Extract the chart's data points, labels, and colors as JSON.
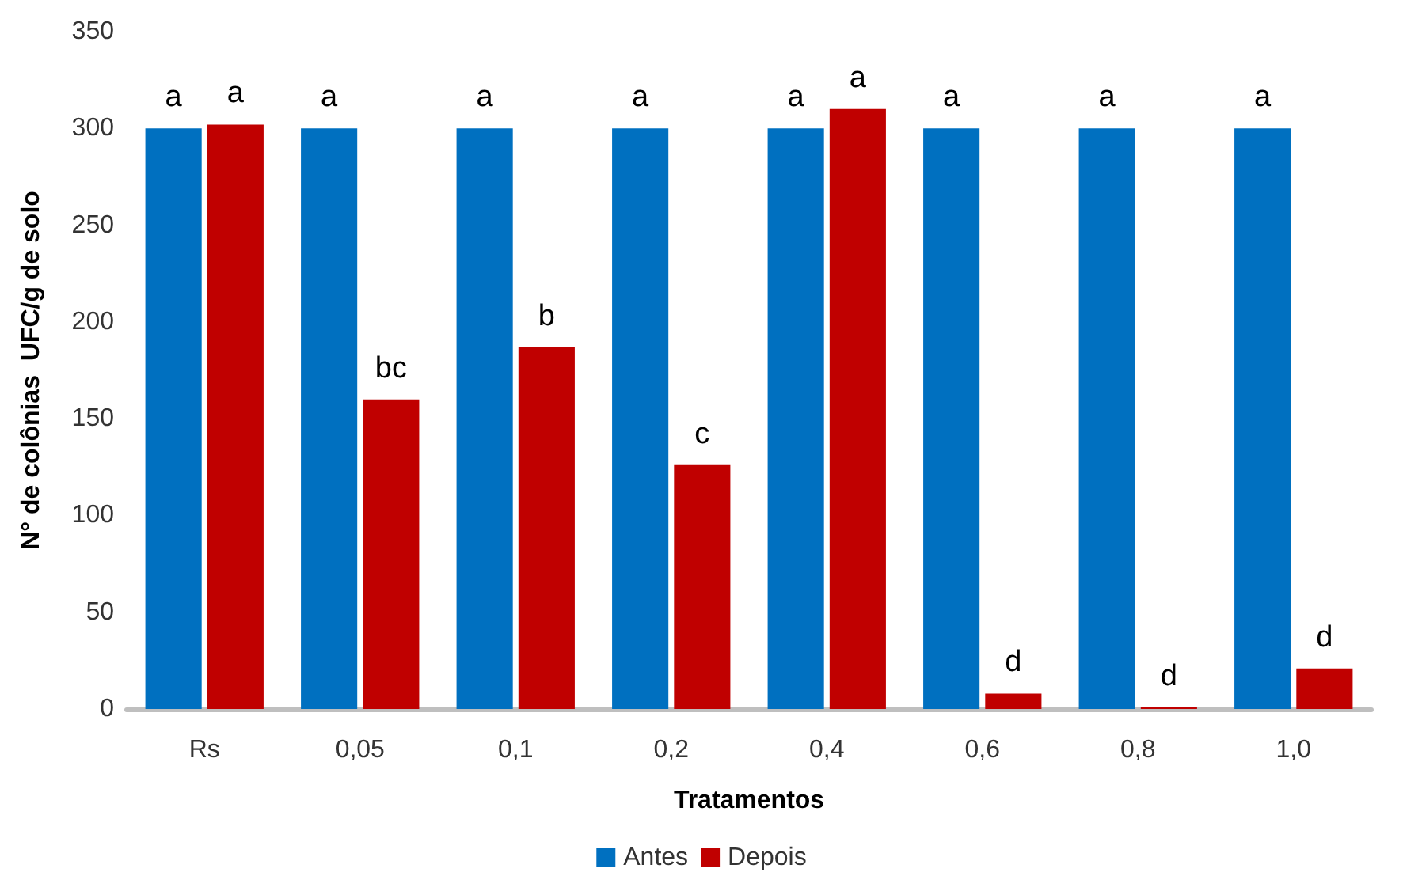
{
  "chart_data": {
    "type": "bar",
    "xlabel": "Tratamentos",
    "ylabel": "N° de colônias  UFC/g de solo",
    "categories": [
      "Rs",
      "0,05",
      "0,1",
      "0,2",
      "0,4",
      "0,6",
      "0,8",
      "1,0"
    ],
    "series": [
      {
        "name": "Antes",
        "color": "#0070c0",
        "values": [
          300,
          300,
          300,
          300,
          300,
          300,
          300,
          300
        ],
        "value_labels": [
          "a",
          "a",
          "a",
          "a",
          "a",
          "a",
          "a",
          "a"
        ]
      },
      {
        "name": "Depois",
        "color": "#c00000",
        "values": [
          302,
          160,
          187,
          126,
          310,
          8,
          1,
          21
        ],
        "value_labels": [
          "a",
          "bc",
          "b",
          "c",
          "a",
          "d",
          "d",
          "d"
        ]
      }
    ],
    "ylim": [
      0,
      350
    ],
    "yticks": [
      0,
      50,
      100,
      150,
      200,
      250,
      300,
      350
    ],
    "grid": false,
    "legend": "bottom"
  }
}
